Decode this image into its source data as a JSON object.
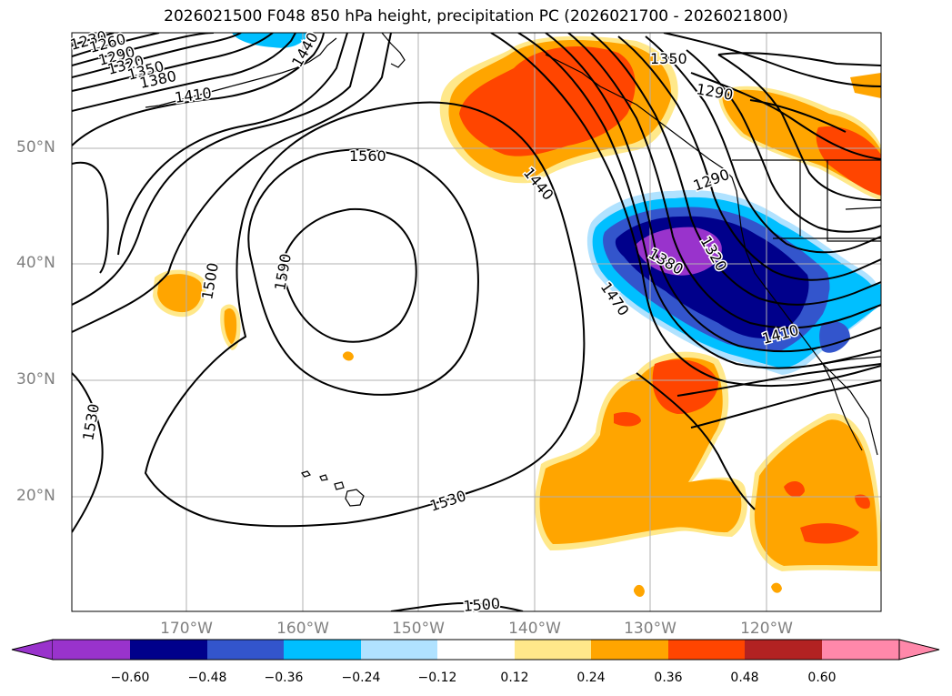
{
  "title": "2026021500 F048 850 hPa height, precipitation PC (2026021700 - 2026021800)",
  "lat_labels": [
    "50°N",
    "40°N",
    "30°N",
    "20°N"
  ],
  "lon_labels": [
    "170°W",
    "160°W",
    "150°W",
    "140°W",
    "130°W",
    "120°W"
  ],
  "contour_labels": [
    "1230",
    "1260",
    "1290",
    "1320",
    "1350",
    "1380",
    "1410",
    "1440",
    "1560",
    "1590",
    "1500",
    "1530",
    "1530",
    "1500",
    "1440",
    "1470",
    "1350",
    "1290",
    "1290",
    "1380",
    "1320",
    "1410"
  ],
  "colorbar": {
    "ticks": [
      "−0.60",
      "−0.48",
      "−0.36",
      "−0.24",
      "−0.12",
      "0.12",
      "0.24",
      "0.36",
      "0.48",
      "0.60"
    ],
    "colors": [
      "#9933cc",
      "#00008b",
      "#3355cc",
      "#00bfff",
      "#b0e2ff",
      "#ffffff",
      "#ffe88a",
      "#ffa500",
      "#ff4500",
      "#b22222",
      "#ff88aa"
    ]
  },
  "colors": {
    "gridline": "#b0b0b0",
    "contour": "#000000",
    "axis_text": "#808080"
  }
}
